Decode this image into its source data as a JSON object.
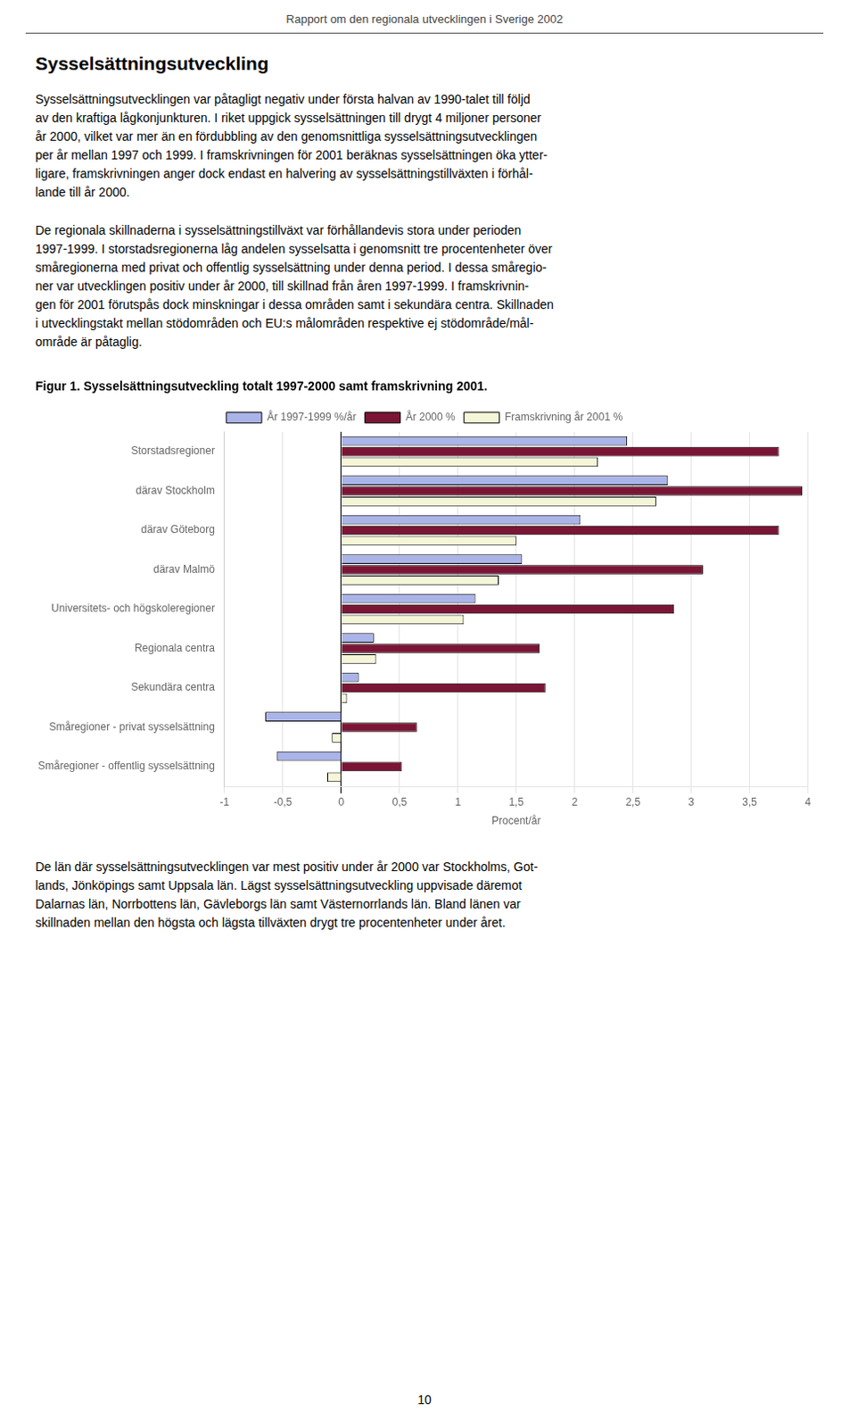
{
  "page_title": "Rapport om den regionala utvecklingen i Sverige 2002",
  "section_title": "Sysselsättningsutveckling",
  "paragraphs_before": [
    "Sysselsättningsutvecklingen var påtagligt negativ under första halvan av 1990-talet till följd\nav den kraftiga lågkonjunkturen. I riket uppgick sysselsättningen till drygt 4 miljoner personer\når 2000, vilket var mer än en fördubbling av den genomsnittliga sysselsättningsutvecklingen\nper år mellan 1997 och 1999. I framskrivningen för 2001 beräknas sysselsättningen öka ytter-\nligare, framskrivningen anger dock endast en halvering av sysselsättningstillväxten i förhål-\nlande till år 2000.",
    "De regionala skillnaderna i sysselsättningstillväxt var förhållandevis stora under perioden\n1997-1999. I storstadsregionerna låg andelen sysselsatta i genomsnitt tre procentenheter över\nsmåregionerna med privat och offentlig sysselsättning under denna period. I dessa småregio-\nner var utvecklingen positiv under år 2000, till skillnad från åren 1997-1999. I framskrivnin-\ngen för 2001 förutspås dock minskningar i dessa områden samt i sekundära centra. Skillnaden\ni utvecklingstakt mellan stödområden och EU:s målområden respektive ej stödområde/mål-\nområde är påtaglig."
  ],
  "paragraphs_after": [
    "De län där sysselsättningsutvecklingen var mest positiv under år 2000 var Stockholms, Got-\nlands, Jönköpings samt Uppsala län. Lägst sysselsättningsutveckling uppvisade däremot\nDalarnas län, Norrbottens län, Gävleborgs län samt Västernorrlands län. Bland länen var\nskillnaden mellan den högsta och lägsta tillväxten drygt tre procentenheter under året."
  ],
  "page_number": "10",
  "chart_data": {
    "type": "bar",
    "orientation": "horizontal",
    "title": "Figur 1. Sysselsättningsutveckling totalt 1997-2000 samt framskrivning 2001.",
    "xlabel": "Procent/år",
    "categories": [
      "Småregioner - offentlig sysselsättning",
      "Småregioner - privat sysselsättning",
      "Sekundära centra",
      "Regionala centra",
      "Universitets- och högskoleregioner",
      "därav Malmö",
      "därav Göteborg",
      "därav Stockholm",
      "Storstadsregioner"
    ],
    "series": [
      {
        "name": "År 1997-1999 %/år",
        "color": "#aab4e8",
        "values": [
          -0.55,
          -0.65,
          0.15,
          0.28,
          1.15,
          1.55,
          2.05,
          2.8,
          2.45
        ]
      },
      {
        "name": "År 2000 %",
        "color": "#7b1535",
        "values": [
          0.52,
          0.65,
          1.75,
          1.7,
          2.85,
          3.1,
          3.75,
          3.95,
          3.75
        ]
      },
      {
        "name": "Framskrivning år 2001 %",
        "color": "#f5f5d8",
        "values": [
          -0.12,
          -0.08,
          0.05,
          0.3,
          1.05,
          1.35,
          1.5,
          2.7,
          2.2
        ]
      }
    ],
    "xlim": [
      -1,
      4
    ],
    "xticks": [
      -1,
      {
        "value": -0.5,
        "label": "-0,5"
      },
      0,
      {
        "value": 0.5,
        "label": "0,5"
      },
      1,
      {
        "value": 1.5,
        "label": "1,5"
      },
      2,
      {
        "value": 2.5,
        "label": "2,5"
      },
      3,
      {
        "value": 3.5,
        "label": "3,5"
      },
      4
    ],
    "grid": true,
    "legend": "top"
  }
}
